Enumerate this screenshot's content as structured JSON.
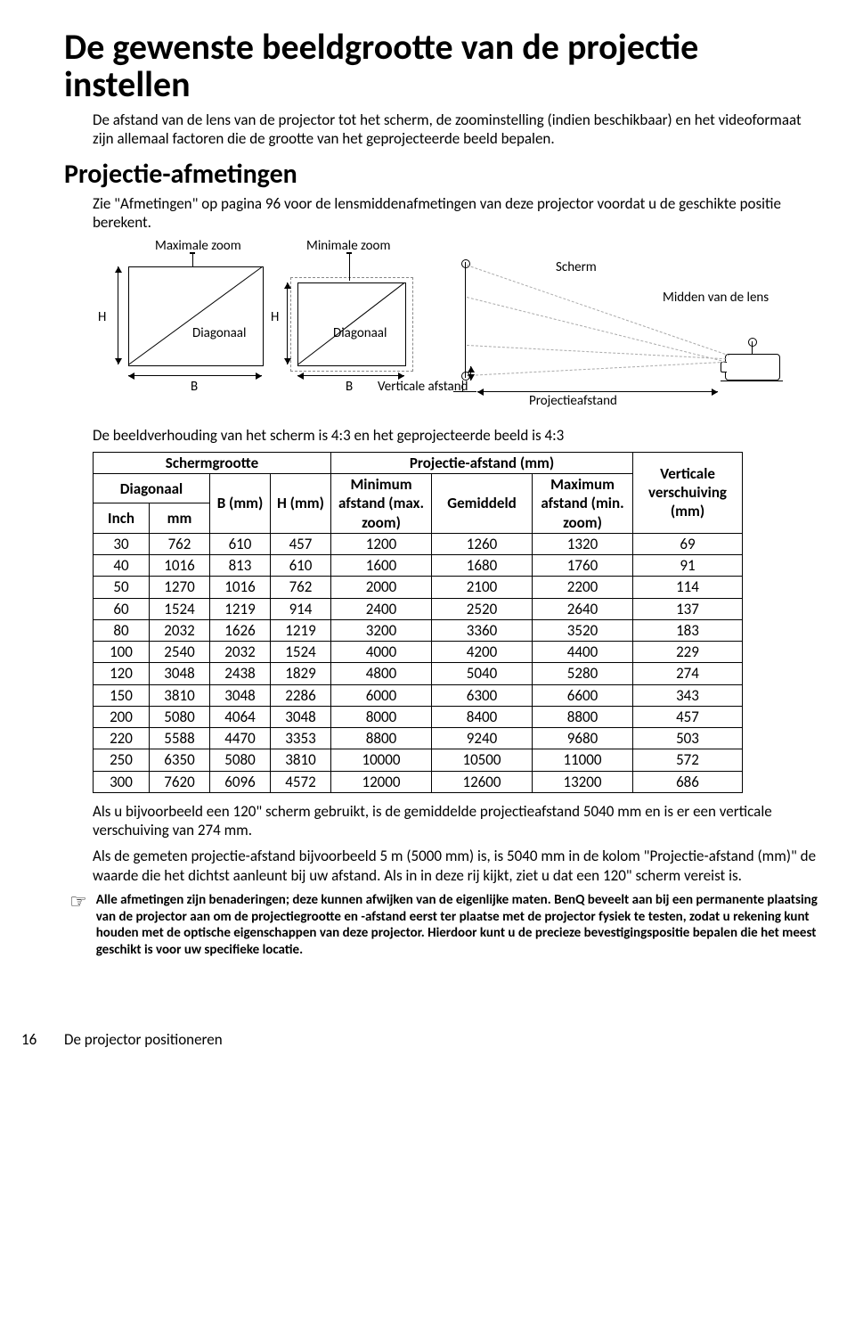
{
  "heading1": "De gewenste beeldgrootte van de projectie instellen",
  "intro_p": "De afstand van de lens van de projector tot het scherm, de zoominstelling (indien beschikbaar) en het videoformaat zijn allemaal factoren die de grootte van het geprojecteerde beeld bepalen.",
  "heading2": "Projectie-afmetingen",
  "sub_p": "Zie \"Afmetingen\" op pagina 96 voor de lensmiddenafmetingen van deze projector voordat u de geschikte positie berekent.",
  "diagram": {
    "labels": {
      "max_zoom": "Maximale zoom",
      "min_zoom": "Minimale zoom",
      "scherm": "Scherm",
      "midden": "Midden van de lens",
      "H": "H",
      "diag": "Diagonaal",
      "B": "B",
      "vert": "Verticale afstand",
      "proj": "Projectieafstand"
    }
  },
  "ratio_p": "De beeldverhouding van het scherm is 4:3 en het geprojecteerde beeld is 4:3",
  "table": {
    "head": {
      "schermgrootte": "Schermgrootte",
      "proj_afstand": "Projectie-afstand (mm)",
      "diagonaal": "Diagonaal",
      "b_mm": "B (mm)",
      "h_mm": "H (mm)",
      "min_afstand": "Minimum afstand (max. zoom)",
      "gemiddeld": "Gemiddeld",
      "max_afstand": "Maximum afstand (min. zoom)",
      "vert_ver": "Verticale verschuiving (mm)",
      "inch": "Inch",
      "mm": "mm"
    },
    "rows": [
      [
        "30",
        "762",
        "610",
        "457",
        "1200",
        "1260",
        "1320",
        "69"
      ],
      [
        "40",
        "1016",
        "813",
        "610",
        "1600",
        "1680",
        "1760",
        "91"
      ],
      [
        "50",
        "1270",
        "1016",
        "762",
        "2000",
        "2100",
        "2200",
        "114"
      ],
      [
        "60",
        "1524",
        "1219",
        "914",
        "2400",
        "2520",
        "2640",
        "137"
      ],
      [
        "80",
        "2032",
        "1626",
        "1219",
        "3200",
        "3360",
        "3520",
        "183"
      ],
      [
        "100",
        "2540",
        "2032",
        "1524",
        "4000",
        "4200",
        "4400",
        "229"
      ],
      [
        "120",
        "3048",
        "2438",
        "1829",
        "4800",
        "5040",
        "5280",
        "274"
      ],
      [
        "150",
        "3810",
        "3048",
        "2286",
        "6000",
        "6300",
        "6600",
        "343"
      ],
      [
        "200",
        "5080",
        "4064",
        "3048",
        "8000",
        "8400",
        "8800",
        "457"
      ],
      [
        "220",
        "5588",
        "4470",
        "3353",
        "8800",
        "9240",
        "9680",
        "503"
      ],
      [
        "250",
        "6350",
        "5080",
        "3810",
        "10000",
        "10500",
        "11000",
        "572"
      ],
      [
        "300",
        "7620",
        "6096",
        "4572",
        "12000",
        "12600",
        "13200",
        "686"
      ]
    ]
  },
  "example1_p": "Als u bijvoorbeeld een 120\" scherm gebruikt, is de gemiddelde projectieafstand 5040 mm en is er een verticale verschuiving van 274 mm.",
  "example2_p": "Als de gemeten projectie-afstand bijvoorbeeld 5 m (5000 mm) is, is 5040 mm in de kolom \"Projectie-afstand (mm)\" de waarde die het dichtst aanleunt bij uw afstand. Als in in deze rij kijkt, ziet u dat een 120\" scherm vereist is.",
  "note": "Alle afmetingen zijn benaderingen; deze kunnen afwijken van de eigenlijke maten. BenQ beveelt aan bij een permanente plaatsing van de projector aan om de projectiegrootte en -afstand eerst ter plaatse met de projector fysiek te testen, zodat u rekening kunt houden met de optische eigenschappen van deze projector. Hierdoor kunt u de precieze bevestigingspositie bepalen die het meest geschikt is voor uw specifieke locatie.",
  "footer": {
    "page": "16",
    "section": "De projector positioneren"
  }
}
